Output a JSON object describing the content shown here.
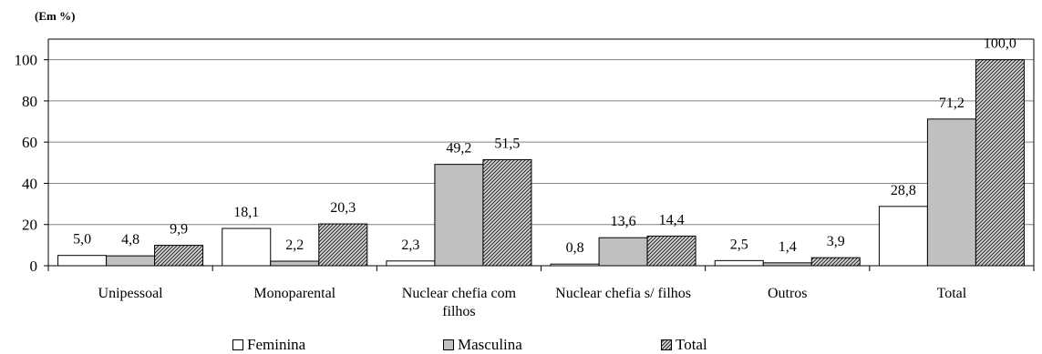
{
  "unit_label": "(Em %)",
  "chart_data": {
    "type": "bar",
    "title": "",
    "xlabel": "",
    "ylabel": "(Em %)",
    "ylim": [
      0,
      110
    ],
    "yticks": [
      "0",
      "20",
      "40",
      "60",
      "80",
      "100"
    ],
    "grid": true,
    "legend_position": "bottom",
    "categories": [
      [
        "Unipessoal"
      ],
      [
        "Monoparental"
      ],
      [
        "Nuclear chefia com",
        "filhos"
      ],
      [
        "Nuclear chefia s/ filhos"
      ],
      [
        "Outros"
      ],
      [
        "Total"
      ]
    ],
    "series": [
      {
        "name": "Feminina",
        "values": [
          5.0,
          18.1,
          2.3,
          0.8,
          2.5,
          28.8
        ],
        "labels": [
          "5,0",
          "18,1",
          "2,3",
          "0,8",
          "2,5",
          "28,8"
        ],
        "fill": "#ffffff",
        "pattern": "none"
      },
      {
        "name": "Masculina",
        "values": [
          4.8,
          2.2,
          49.2,
          13.6,
          1.4,
          71.2
        ],
        "labels": [
          "4,8",
          "2,2",
          "49,2",
          "13,6",
          "1,4",
          "71,2"
        ],
        "fill": "#c0c0c0",
        "pattern": "none"
      },
      {
        "name": "Total",
        "values": [
          9.9,
          20.3,
          51.5,
          14.4,
          3.9,
          100.0
        ],
        "labels": [
          "9,9",
          "20,3",
          "51,5",
          "14,4",
          "3,9",
          "100,0"
        ],
        "fill": "#8c8c8c",
        "pattern": "hatch"
      }
    ]
  }
}
